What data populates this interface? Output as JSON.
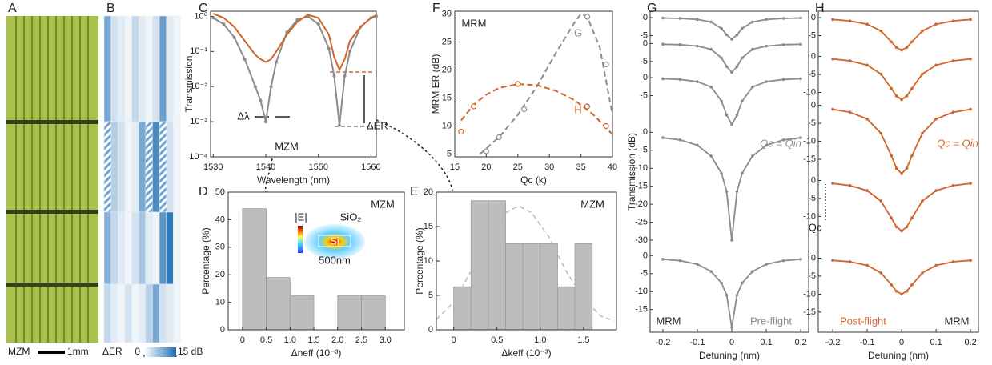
{
  "panel_a": {
    "label": "A",
    "caption": "MZM",
    "scale_label": "1mm"
  },
  "chart_data": [
    {
      "type": "heatmap",
      "label": "B",
      "title": "ΔER",
      "clim": [
        0,
        15
      ],
      "colors": [
        "#ffffff",
        "#1f6fb4"
      ],
      "colorbar_ticks": [
        0,
        {
          "value": 15,
          "label": "15 dB"
        }
      ],
      "values": [
        [
          9,
          3,
          2,
          1,
          4,
          2,
          1,
          3,
          10,
          2,
          1
        ],
        [
          null,
          5,
          3,
          1,
          2,
          9,
          null,
          12,
          null,
          3,
          1
        ],
        [
          8,
          4,
          2,
          1,
          3,
          6,
          2,
          1,
          11,
          14,
          1
        ],
        [
          4,
          2,
          1,
          3,
          1,
          2,
          5,
          9,
          3,
          2,
          1
        ]
      ]
    },
    {
      "type": "line",
      "label": "C",
      "log_y": true,
      "xlabel": "Wavelength (nm)",
      "ylabel": "Transmission",
      "annotations": [
        "Δλ",
        "ΔER",
        "MZM"
      ],
      "x": [
        1530,
        1532,
        1534,
        1536,
        1538,
        1539,
        1540,
        1541,
        1542,
        1544,
        1546,
        1548,
        1550,
        1552,
        1553,
        1554,
        1555,
        1556,
        1558,
        1560,
        1561
      ],
      "series": [
        {
          "color": "#8c8c8c",
          "markers": true,
          "values": [
            0.9,
            0.6,
            0.25,
            0.06,
            0.01,
            0.004,
            0.001,
            0.01,
            0.05,
            0.35,
            0.8,
            1.0,
            0.6,
            0.12,
            0.02,
            0.0008,
            0.02,
            0.1,
            0.5,
            0.9,
            1.0
          ]
        },
        {
          "color": "#d2642a",
          "markers": false,
          "values": [
            1.2,
            0.9,
            0.5,
            0.2,
            0.08,
            0.06,
            0.05,
            0.06,
            0.1,
            0.3,
            0.7,
            1.1,
            0.9,
            0.3,
            0.07,
            0.03,
            0.06,
            0.2,
            0.5,
            0.9,
            1.1
          ]
        }
      ],
      "xlim": [
        1529.5,
        1561
      ],
      "xticks": [
        1530,
        1540,
        1550,
        1560
      ],
      "ylim": [
        0.0001,
        1.4
      ],
      "yticks": [
        {
          "value": 1,
          "label": "10⁰"
        },
        {
          "value": 0.1,
          "label": "10⁻¹"
        },
        {
          "value": 0.01,
          "label": "10⁻²"
        },
        {
          "value": 0.001,
          "label": "10⁻³"
        },
        {
          "value": 0.0001,
          "label": "10⁻⁴"
        }
      ]
    },
    {
      "type": "histogram",
      "label": "D",
      "xlabel": "Δneff (10⁻³)",
      "ylabel": "Percentage (%)",
      "annotations": [
        "MZM",
        "|E|",
        "SiO₂",
        "Si",
        "500nm"
      ],
      "color": "#bdbdbd",
      "bins": [
        0,
        0.5,
        1,
        1.5,
        2,
        2.5,
        3
      ],
      "values": [
        44,
        19,
        12.5,
        0,
        12.5,
        12.5
      ],
      "xlim": [
        -0.3,
        3.4
      ],
      "xticks": [
        0,
        0.5,
        {
          "value": 1,
          "label": "1.0"
        },
        1.5,
        {
          "value": 2,
          "label": "2.0"
        },
        2.5,
        {
          "value": 3,
          "label": "3.0"
        }
      ],
      "ylim": [
        0,
        50
      ],
      "yticks": [
        0,
        10,
        20,
        30,
        40,
        50
      ]
    },
    {
      "type": "histogram",
      "label": "E",
      "xlabel": "Δkeff (10⁻³)",
      "ylabel": "Percentage (%)",
      "annotations": [
        "MZM"
      ],
      "color": "#bdbdbd",
      "bins": [
        0,
        0.2,
        0.4,
        0.6,
        0.8,
        1.0,
        1.2,
        1.4,
        1.6
      ],
      "values": [
        6.25,
        18.75,
        18.75,
        12.5,
        12.5,
        12.5,
        6.25,
        12.5
      ],
      "fit": {
        "color": "#bbbbbb",
        "x": [
          -0.2,
          0,
          0.2,
          0.4,
          0.6,
          0.75,
          0.9,
          1.1,
          1.3,
          1.5,
          1.7,
          1.85
        ],
        "values": [
          1.5,
          4,
          8.5,
          13.5,
          17,
          18,
          17,
          13.5,
          8.5,
          4.5,
          2,
          1.3
        ]
      },
      "xlim": [
        -0.2,
        1.88
      ],
      "xticks": [
        0,
        0.5,
        {
          "value": 1,
          "label": "1.0"
        },
        1.5
      ],
      "ylim": [
        0,
        20
      ],
      "yticks": [
        0,
        5,
        10,
        15,
        20
      ]
    },
    {
      "type": "scatter",
      "label": "F",
      "xlabel": "Qc (k)",
      "ylabel": "MRM ER (dB)",
      "annotations": [
        "MRM"
      ],
      "series": [
        {
          "name": "G",
          "color": "#8c8c8c",
          "markers": true,
          "x": [
            20,
            22,
            26,
            36,
            39
          ],
          "values": [
            5.5,
            8,
            13,
            29.5,
            21
          ]
        },
        {
          "name": "H",
          "color": "#d2642a",
          "markers": true,
          "x": [
            16,
            18,
            25,
            36,
            39
          ],
          "values": [
            9,
            13.5,
            17.5,
            13.5,
            10
          ]
        },
        {
          "color": "#8c8c8c",
          "dash": true,
          "x": [
            19,
            22,
            25,
            28,
            31,
            34,
            35,
            36,
            38,
            40
          ],
          "values": [
            5,
            8,
            12,
            17,
            23,
            28.5,
            30,
            29.5,
            24,
            12
          ]
        },
        {
          "color": "#d2642a",
          "dash": true,
          "x": [
            16,
            18,
            20,
            22,
            25,
            28,
            31,
            34,
            37,
            40
          ],
          "values": [
            11,
            13.8,
            15.6,
            16.8,
            17.5,
            17.3,
            16.3,
            14.6,
            12,
            8.5
          ]
        }
      ],
      "xlim": [
        15,
        40
      ],
      "xticks": [
        15,
        20,
        25,
        30,
        35,
        40
      ],
      "ylim": [
        4.5,
        30.5
      ],
      "yticks": [
        5,
        10,
        15,
        20,
        25,
        30
      ]
    },
    {
      "type": "stacked_line",
      "label": "G",
      "xlabel": "Detuning (nm)",
      "ylabel": "Transmission (dB)",
      "annotations": [
        "Qc = Qin",
        "MRM",
        "Pre-flight"
      ],
      "x": [
        -0.2,
        -0.15,
        -0.1,
        -0.06,
        -0.03,
        -0.015,
        0,
        0.015,
        0.03,
        0.06,
        0.1,
        0.15,
        0.2
      ],
      "xlim": [
        -0.237,
        0.223
      ],
      "xticks": [
        -0.2,
        -0.1,
        0,
        0.1,
        0.2
      ],
      "series": [
        {
          "color": "#8c8c8c",
          "ylim": [
            -6.2,
            1.8
          ],
          "yticks": [
            0,
            -5
          ],
          "values": [
            -0.1,
            -0.2,
            -0.5,
            -1.2,
            -3,
            -4.8,
            -6,
            -4.8,
            -3,
            -1.2,
            -0.5,
            -0.2,
            -0.1
          ]
        },
        {
          "color": "#8c8c8c",
          "ylim": [
            -8.5,
            1
          ],
          "yticks": [
            0,
            -5
          ],
          "values": [
            -0.2,
            -0.3,
            -0.7,
            -1.6,
            -4,
            -6.4,
            -8,
            -6.4,
            -4,
            -1.6,
            -0.7,
            -0.3,
            -0.2
          ]
        },
        {
          "color": "#8c8c8c",
          "ylim": [
            -14.2,
            1
          ],
          "yticks": [
            0,
            -5
          ],
          "values": [
            -0.3,
            -0.5,
            -1.1,
            -2.6,
            -6.5,
            -10.4,
            -13,
            -10.4,
            -6.5,
            -2.6,
            -1.1,
            -0.5,
            -0.3
          ]
        },
        {
          "color": "#8c8c8c",
          "ylim": [
            -33.3,
            1
          ],
          "yticks": [
            0,
            -5,
            -10,
            -15,
            -20,
            -25,
            -30
          ],
          "values": [
            -1.5,
            -2.1,
            -3.6,
            -6.6,
            -11.4,
            -16.5,
            -30,
            -16.5,
            -11.4,
            -6.6,
            -3.6,
            -2.1,
            -1.5
          ]
        },
        {
          "color": "#8c8c8c",
          "ylim": [
            -21.3,
            1
          ],
          "yticks": [
            0,
            -5,
            -10,
            -15
          ],
          "values": [
            -1,
            -1.4,
            -2.4,
            -4.4,
            -7.6,
            -11,
            -20,
            -11,
            -7.6,
            -4.4,
            -2.4,
            -1.4,
            -1
          ]
        }
      ]
    },
    {
      "type": "stacked_line",
      "label": "H",
      "xlabel": "Detuning (nm)",
      "annotations": [
        "Qc = Qin",
        "Post-flight",
        "MRM",
        "Qc"
      ],
      "x": [
        -0.2,
        -0.15,
        -0.1,
        -0.06,
        -0.03,
        -0.015,
        0,
        0.015,
        0.03,
        0.06,
        0.1,
        0.15,
        0.2
      ],
      "xlim": [
        -0.242,
        0.223
      ],
      "xticks": [
        -0.2,
        -0.1,
        0,
        0.1,
        0.2
      ],
      "series": [
        {
          "color": "#d2642a",
          "ylim": [
            -9.8,
            1.8
          ],
          "yticks": [
            0,
            -5
          ],
          "values": [
            -0.5,
            -0.9,
            -1.8,
            -3.7,
            -6.7,
            -8.3,
            -9,
            -8.3,
            -6.7,
            -3.7,
            -1.8,
            -0.9,
            -0.5
          ]
        },
        {
          "color": "#d2642a",
          "ylim": [
            -12.6,
            1
          ],
          "yticks": [
            0,
            -5,
            -10
          ],
          "values": [
            -0.7,
            -1.2,
            -2.4,
            -4.9,
            -8.9,
            -11,
            -12,
            -11,
            -8.9,
            -4.9,
            -2.4,
            -1.2,
            -0.7
          ]
        },
        {
          "color": "#d2642a",
          "ylim": [
            -19.9,
            1
          ],
          "yticks": [
            0,
            -5,
            -10,
            -15
          ],
          "values": [
            -1.1,
            -1.9,
            -3.8,
            -7.8,
            -14,
            -17.5,
            -19,
            -17.5,
            -14,
            -7.8,
            -3.8,
            -1.9,
            -1.1
          ]
        },
        {
          "color": "#d2642a",
          "ylim": [
            -20.6,
            1
          ],
          "yticks": [
            0,
            -5,
            -10
          ],
          "values": [
            -0.8,
            -1.4,
            -2.8,
            -5.7,
            -10.4,
            -12.9,
            -14,
            -12.9,
            -10.4,
            -5.7,
            -2.8,
            -1.4,
            -0.8
          ]
        },
        {
          "color": "#d2642a",
          "ylim": [
            -20.6,
            1
          ],
          "yticks": [
            0,
            -5,
            -10,
            -15
          ],
          "values": [
            -0.6,
            -1,
            -2,
            -4.1,
            -7.4,
            -9.2,
            -10,
            -9.2,
            -7.4,
            -4.1,
            -2,
            -1,
            -0.6
          ]
        }
      ]
    }
  ]
}
